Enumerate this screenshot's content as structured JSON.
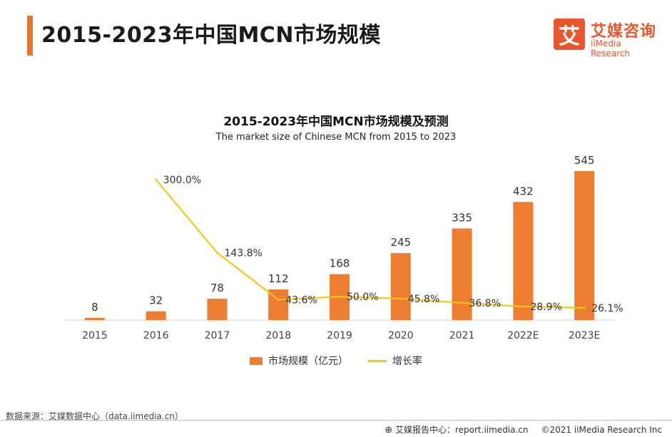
{
  "header": {
    "title": "2015-2023年中国MCN市场规模",
    "logo_char": "艾",
    "logo_cn": "艾媒咨询",
    "logo_en": "iiMedia Research"
  },
  "chart_data": {
    "type": "bar",
    "title": "2015-2023年中国MCN市场规模及预测",
    "subtitle": "The  market size of Chinese MCN from 2015 to 2023",
    "categories": [
      "2015",
      "2016",
      "2017",
      "2018",
      "2019",
      "2020",
      "2021",
      "2022E",
      "2023E"
    ],
    "series": [
      {
        "name": "市场规模（亿元）",
        "type": "bar",
        "values": [
          8,
          32,
          78,
          112,
          168,
          245,
          335,
          432,
          545
        ],
        "labels": [
          "8",
          "32",
          "78",
          "112",
          "168",
          "245",
          "335",
          "432",
          "545"
        ],
        "color": "#ed7d31"
      },
      {
        "name": "增长率",
        "type": "line",
        "values": [
          null,
          300.0,
          143.8,
          43.6,
          50.0,
          45.8,
          36.8,
          28.9,
          26.1
        ],
        "labels": [
          "",
          "300.0%",
          "143.8%",
          "43.6%",
          "50.0%",
          "45.8%",
          "36.8%",
          "28.9%",
          "26.1%"
        ],
        "color": "#f5c518"
      }
    ],
    "ylim_bar": [
      0,
      600
    ],
    "ylim_line": [
      0,
      350
    ],
    "grid": false,
    "legend": "bottom"
  },
  "footer": {
    "source": "数据来源：艾媒数据中心（data.iimedia.cn）",
    "report_center": "艾媒报告中心：report.iimedia.cn",
    "copyright": "©2021  iiMedia Research  Inc"
  }
}
